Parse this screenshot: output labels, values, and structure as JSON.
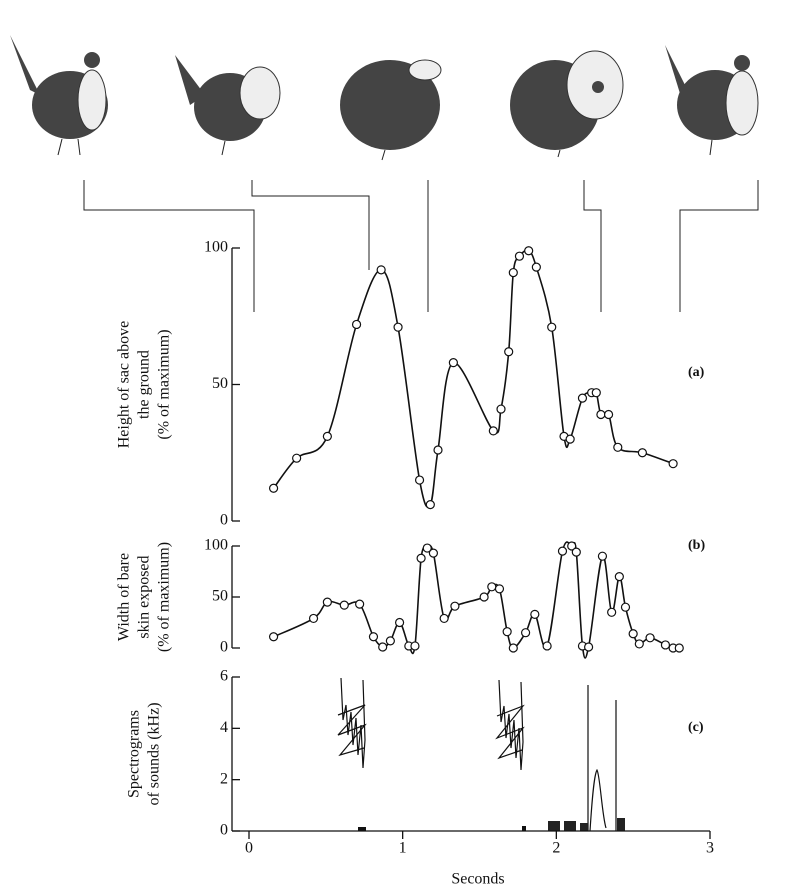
{
  "chart_data": [
    {
      "type": "line",
      "panel": "(a)",
      "ylabel": [
        "Height of sac above",
        "the ground",
        "(% of maximum)"
      ],
      "ylim": [
        0,
        100
      ],
      "yticks": [
        0,
        50,
        100
      ],
      "xlim": [
        0,
        3
      ],
      "markers": true,
      "color": "#111111",
      "x": [
        0.16,
        0.31,
        0.51,
        0.7,
        0.86,
        0.97,
        1.11,
        1.18,
        1.23,
        1.33,
        1.59,
        1.64,
        1.69,
        1.72,
        1.76,
        1.82,
        1.87,
        1.97,
        2.05,
        2.09,
        2.17,
        2.23,
        2.26,
        2.29,
        2.34,
        2.4,
        2.56,
        2.76
      ],
      "values": [
        12,
        23,
        31,
        72,
        92,
        71,
        15,
        6,
        26,
        58,
        33,
        41,
        62,
        91,
        97,
        99,
        93,
        71,
        31,
        30,
        45,
        47,
        47,
        39,
        39,
        27,
        25,
        21
      ]
    },
    {
      "type": "line",
      "panel": "(b)",
      "ylabel": [
        "Width of bare",
        "skin exposed",
        "(% of maximum)"
      ],
      "ylim": [
        0,
        100
      ],
      "yticks": [
        0,
        50,
        100
      ],
      "xlim": [
        0,
        3
      ],
      "markers": true,
      "color": "#111111",
      "x": [
        0.16,
        0.42,
        0.51,
        0.62,
        0.72,
        0.81,
        0.87,
        0.92,
        0.98,
        1.04,
        1.08,
        1.12,
        1.16,
        1.2,
        1.27,
        1.34,
        1.53,
        1.58,
        1.63,
        1.68,
        1.72,
        1.8,
        1.86,
        1.94,
        2.04,
        2.1,
        2.13,
        2.17,
        2.21,
        2.3,
        2.36,
        2.41,
        2.45,
        2.5,
        2.54,
        2.61,
        2.71,
        2.76,
        2.8
      ],
      "values": [
        11,
        29,
        45,
        42,
        43,
        11,
        1,
        7,
        25,
        2,
        2,
        88,
        98,
        93,
        29,
        41,
        50,
        60,
        58,
        16,
        0,
        15,
        33,
        2,
        95,
        100,
        94,
        2,
        1,
        90,
        35,
        70,
        40,
        14,
        4,
        10,
        3,
        0,
        0
      ]
    },
    {
      "type": "spectrogram",
      "panel": "(c)",
      "ylabel": [
        "Spectrograms",
        "of sounds (kHz)"
      ],
      "ylim": [
        0,
        6
      ],
      "yticks": [
        0,
        2,
        4,
        6
      ],
      "xlim": [
        0,
        3
      ],
      "xticks": [
        0,
        1,
        2,
        3
      ],
      "xlabel": "Seconds"
    }
  ]
}
